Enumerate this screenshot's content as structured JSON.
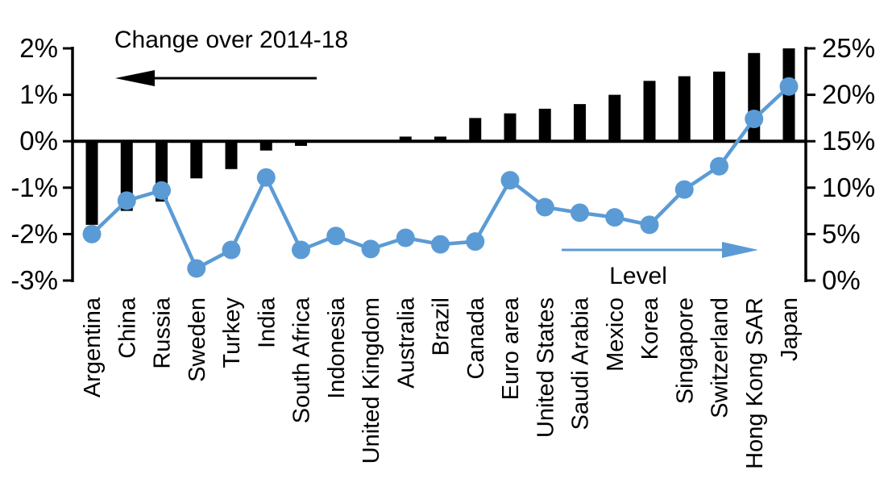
{
  "chart_data": {
    "type": "bar+line",
    "categories": [
      "Argentina",
      "China",
      "Russia",
      "Sweden",
      "Turkey",
      "India",
      "South Africa",
      "Indonesia",
      "United Kingdom",
      "Australia",
      "Brazil",
      "Canada",
      "Euro area",
      "United States",
      "Saudi Arabia",
      "Mexico",
      "Korea",
      "Singapore",
      "Switzerland",
      "Hong Kong SAR",
      "Japan"
    ],
    "series": [
      {
        "name": "Change over 2014-18",
        "type": "bar",
        "axis": "left",
        "color": "#000000",
        "values": [
          -1.8,
          -1.5,
          -1.3,
          -0.8,
          -0.6,
          -0.2,
          -0.1,
          0,
          0,
          0.1,
          0.1,
          0.5,
          0.6,
          0.7,
          0.8,
          1.0,
          1.3,
          1.4,
          1.5,
          1.9,
          2.0
        ]
      },
      {
        "name": "Level",
        "type": "line",
        "axis": "right",
        "color": "#5B9BD5",
        "values": [
          5.0,
          8.6,
          9.7,
          1.3,
          3.3,
          11.1,
          3.3,
          4.8,
          3.4,
          4.6,
          3.9,
          4.2,
          10.8,
          7.9,
          7.3,
          6.8,
          6.0,
          9.8,
          12.3,
          17.4,
          20.9
        ]
      }
    ],
    "left_axis": {
      "min": -3,
      "max": 2,
      "tick_labels": [
        "2%",
        "1%",
        "0%",
        "-1%",
        "-2%",
        "-3%"
      ]
    },
    "right_axis": {
      "min": 0,
      "max": 25,
      "tick_labels": [
        "25%",
        "20%",
        "15%",
        "10%",
        "5%",
        "0%"
      ]
    },
    "annotations": {
      "bar_series_label": "Change over 2014-18",
      "line_series_label": "Level"
    },
    "colors": {
      "bar": "#000000",
      "line": "#5B9BD5"
    },
    "legend_position": "annotations-with-arrows",
    "grid": false
  }
}
